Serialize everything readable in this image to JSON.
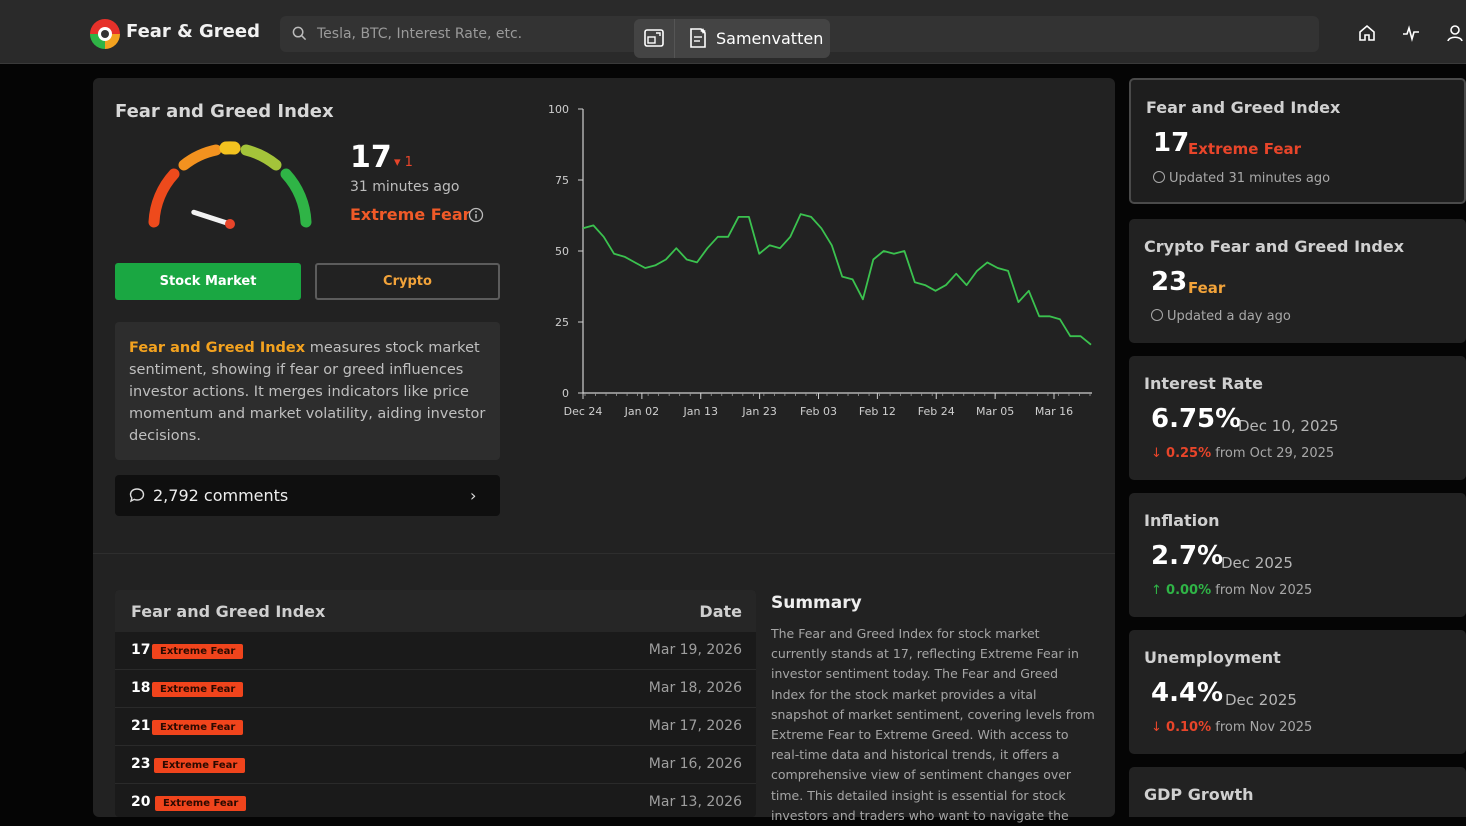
{
  "header": {
    "brand": "Fear & Greed",
    "search_placeholder": "Tesla, BTC, Interest Rate, etc.",
    "summarize_label": "Samenvatten"
  },
  "index_panel": {
    "title": "Fear and Greed Index",
    "score": "17",
    "delta": "▾ 1",
    "updated": "31 minutes ago",
    "sentiment": "Extreme Fear",
    "gauge_value": 17,
    "tab_stock": "Stock Market",
    "tab_crypto": "Crypto",
    "desc_strong": "Fear and Greed Index",
    "desc_rest": " measures stock market sentiment, showing if fear or greed influences investor actions. It merges indicators like price momentum and market volatility, aiding investor decisions.",
    "comments": "2,792 comments"
  },
  "chart_data": {
    "type": "line",
    "x_labels": [
      "Dec 24",
      "Jan 02",
      "Jan 13",
      "Jan 23",
      "Feb 03",
      "Feb 12",
      "Feb 24",
      "Mar 05",
      "Mar 16"
    ],
    "yticks": [
      "100",
      "75",
      "50",
      "25",
      "0"
    ],
    "ylim": [
      0,
      100
    ],
    "color": "#3bc24f",
    "values": [
      58,
      59,
      55,
      49,
      48,
      46,
      44,
      45,
      47,
      51,
      47,
      46,
      51,
      55,
      55,
      62,
      62,
      49,
      52,
      51,
      55,
      63,
      62,
      58,
      52,
      41,
      40,
      33,
      47,
      50,
      49,
      50,
      39,
      38,
      36,
      38,
      42,
      38,
      43,
      46,
      44,
      43,
      32,
      36,
      27,
      27,
      26,
      20,
      20,
      17
    ]
  },
  "history_table": {
    "col_index": "Fear and Greed Index",
    "col_date": "Date",
    "rows": [
      {
        "value": "17",
        "label": "Extreme Fear",
        "date": "Mar 19, 2026"
      },
      {
        "value": "18",
        "label": "Extreme Fear",
        "date": "Mar 18, 2026"
      },
      {
        "value": "21",
        "label": "Extreme Fear",
        "date": "Mar 17, 2026"
      },
      {
        "value": "23",
        "label": "Extreme Fear",
        "date": "Mar 16, 2026"
      },
      {
        "value": "20",
        "label": "Extreme Fear",
        "date": "Mar 13, 2026"
      }
    ]
  },
  "summary": {
    "title": "Summary",
    "text": "The Fear and Greed Index for stock market currently stands at 17, reflecting Extreme Fear in investor sentiment today. The Fear and Greed Index for the stock market provides a vital snapshot of market sentiment, covering levels from Extreme Fear to Extreme Greed. With access to real-time data and historical trends, it offers a comprehensive view of sentiment changes over time. This detailed insight is essential for stock investors and traders who want to navigate the"
  },
  "cards": {
    "fg": {
      "title": "Fear and Greed Index",
      "value": "17",
      "label": "Extreme Fear",
      "sub": "Updated 31 minutes ago"
    },
    "crypto": {
      "title": "Crypto Fear and Greed Index",
      "value": "23",
      "label": "Fear",
      "sub": "Updated a day ago"
    },
    "interest": {
      "title": "Interest Rate",
      "value": "6.75%",
      "date": "Dec 10, 2025",
      "change": "0.25%",
      "from": "from Oct 29, 2025"
    },
    "inflation": {
      "title": "Inflation",
      "value": "2.7%",
      "date": "Dec 2025",
      "change": "0.00%",
      "from": "from Nov 2025"
    },
    "unemployment": {
      "title": "Unemployment",
      "value": "4.4%",
      "date": "Dec 2025",
      "change": "0.10%",
      "from": "from Nov 2025"
    },
    "gdp": {
      "title": "GDP Growth"
    }
  },
  "colors": {
    "accent_green": "#1aa742",
    "fear_red": "#f05a28",
    "crypto_orange": "#f2a33a"
  }
}
